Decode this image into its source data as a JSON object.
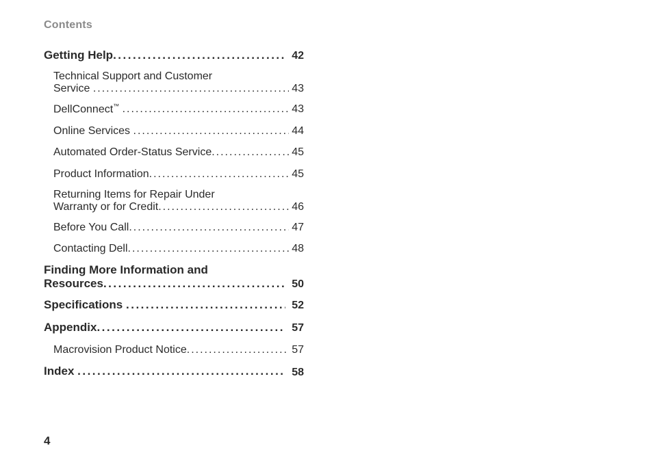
{
  "header": "Contents",
  "dots": "..........................................................................",
  "toc": {
    "gettingHelp": {
      "label": "Getting Help",
      "page": "42"
    },
    "techSupport": {
      "line1": "Technical Support and Customer",
      "line2": "Service",
      "page": "43"
    },
    "dellConnect": {
      "label": "DellConnect",
      "page": "43"
    },
    "onlineServices": {
      "label": "Online Services",
      "page": "44"
    },
    "autoOrder": {
      "label": "Automated Order-Status Service",
      "page": "45"
    },
    "productInfo": {
      "label": "Product Information",
      "page": "45"
    },
    "returning": {
      "line1": "Returning Items for Repair Under",
      "line2": "Warranty or for Credit",
      "page": "46"
    },
    "beforeCall": {
      "label": "Before You Call",
      "page": "47"
    },
    "contactingDell": {
      "label": "Contacting Dell",
      "page": "48"
    },
    "findingMore": {
      "line1": "Finding More Information and",
      "line2": "Resources",
      "page": "50"
    },
    "specifications": {
      "label": "Specifications",
      "page": "52"
    },
    "appendix": {
      "label": "Appendix",
      "page": "57"
    },
    "macrovision": {
      "label": "Macrovision Product Notice",
      "page": "57"
    },
    "index": {
      "label": "Index",
      "page": "58"
    }
  },
  "pageNumber": "4",
  "tm": "™"
}
